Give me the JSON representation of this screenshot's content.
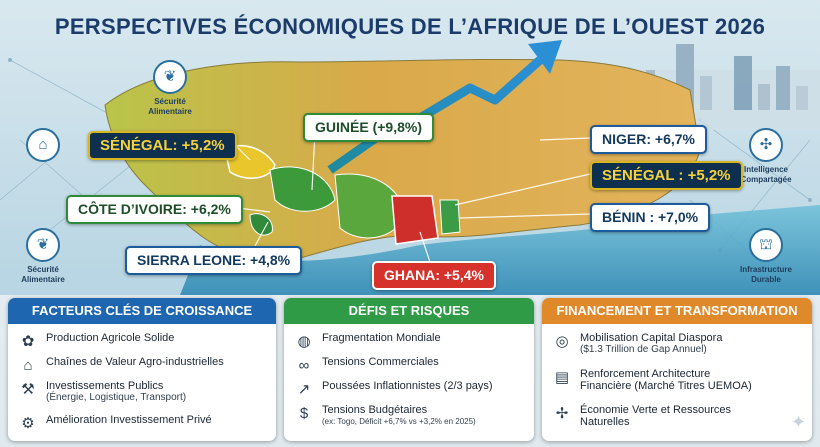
{
  "title": "PERSPECTIVES ÉCONOMIQUES DE L’AFRIQUE DE L’OUEST 2026",
  "side_icons": {
    "food1": {
      "line1": "Sécurité",
      "line2": "Alimentaire",
      "icon": "wheat-icon"
    },
    "food2": {
      "line1": "Sécurité",
      "line2": "Alimentaire",
      "icon": "wheat-icon"
    },
    "factory": {
      "icon": "factory-icon"
    },
    "intelligence": {
      "line1": "Intelligence",
      "line2": "Compartagée",
      "icon": "network-icon"
    },
    "infrastructure": {
      "line1": "Infrastructure",
      "line2": "Durable",
      "icon": "bridge-icon"
    }
  },
  "countries": {
    "senegal_left": "SÉNÉGAL: +5,2%",
    "guinee": "GUINÉE (+9,8%)",
    "niger": "NIGER: +6,7%",
    "senegal_right": "SÉNÉGAL : +5,2%",
    "cote_divoire": "CÔTE D’IVOIRE: +6,2%",
    "benin": "BÉNIN : +7,0%",
    "sierra_leone": "SIERRA LEONE: +4,8%",
    "ghana": "GHANA: +5,4%"
  },
  "colors": {
    "blue_head": "#1f66b0",
    "green_head": "#2f9b47",
    "orange_head": "#e0892a"
  },
  "panels": {
    "growth": {
      "title": "FACTEURS CLÉS DE CROISSANCE",
      "items": [
        {
          "label": "Production Agricole Solide",
          "icon": "farm-icon"
        },
        {
          "label": "Chaînes de Valeur Agro-industrielles",
          "icon": "factory-icon"
        },
        {
          "label": "Investissements Publics",
          "sub": "(Énergie, Logistique, Transport)",
          "icon": "crane-icon"
        },
        {
          "label": "Amélioration Investissement Privé",
          "icon": "gear-icon"
        }
      ]
    },
    "risks": {
      "title": "DÉFIS ET RISQUES",
      "items": [
        {
          "label": "Fragmentation Mondiale",
          "icon": "globe-icon"
        },
        {
          "label": "Tensions Commerciales",
          "icon": "chain-icon"
        },
        {
          "label": "Poussées Inflationnistes (2/3 pays)",
          "icon": "chart-up-icon"
        },
        {
          "label": "Tensions Budgétaires",
          "sub": "(ex: Togo, Déficit +6,7% vs +3,2% en 2025)",
          "icon": "money-bag-icon"
        }
      ]
    },
    "finance": {
      "title": "FINANCEMENT ET TRANSFORMATION",
      "items": [
        {
          "label": "Mobilisation Capital Diaspora",
          "sub": "($1.3 Trillion de Gap Annuel)",
          "icon": "coins-icon"
        },
        {
          "label": "Renforcement Architecture",
          "label2": "Financière (Marché Titres UEMOA)",
          "icon": "banknote-icon"
        },
        {
          "label": "Économie Verte et Ressources",
          "label2": "Naturelles",
          "icon": "wind-turbine-icon"
        }
      ]
    }
  }
}
